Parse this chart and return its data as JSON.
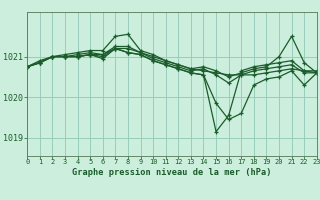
{
  "bg_color": "#cceedd",
  "grid_color": "#99ccbb",
  "line_color": "#1a5c2a",
  "marker_color": "#1a5c2a",
  "title": "Graphe pression niveau de la mer (hPa)",
  "label_color": "#1a5c2a",
  "ylim": [
    1018.55,
    1022.1
  ],
  "yticks": [
    1019,
    1020,
    1021
  ],
  "xlim": [
    0,
    23
  ],
  "xticks": [
    0,
    1,
    2,
    3,
    4,
    5,
    6,
    7,
    8,
    9,
    10,
    11,
    12,
    13,
    14,
    15,
    16,
    17,
    18,
    19,
    20,
    21,
    22,
    23
  ],
  "series": [
    [
      1020.75,
      1020.9,
      1021.0,
      1021.0,
      1021.0,
      1021.05,
      1021.05,
      1021.25,
      1021.25,
      1021.1,
      1021.0,
      1020.9,
      1020.8,
      1020.7,
      1020.65,
      1020.6,
      1020.55,
      1020.55,
      1020.55,
      1020.6,
      1020.65,
      1020.7,
      1020.65,
      1020.6
    ],
    [
      1020.75,
      1020.85,
      1021.0,
      1021.05,
      1021.1,
      1021.15,
      1021.15,
      1021.5,
      1021.55,
      1021.15,
      1021.05,
      1020.9,
      1020.8,
      1020.7,
      1020.75,
      1020.65,
      1020.5,
      1020.6,
      1020.7,
      1020.75,
      1021.0,
      1021.5,
      1020.85,
      1020.6
    ],
    [
      1020.75,
      1020.85,
      1021.0,
      1021.0,
      1021.05,
      1021.1,
      1021.05,
      1021.2,
      1021.2,
      1021.1,
      1020.95,
      1020.85,
      1020.75,
      1020.65,
      1020.7,
      1020.55,
      1020.35,
      1020.55,
      1020.65,
      1020.7,
      1020.75,
      1020.8,
      1020.6,
      1020.6
    ],
    [
      1020.75,
      1020.85,
      1021.0,
      1021.0,
      1021.0,
      1021.05,
      1021.0,
      1021.2,
      1021.1,
      1021.05,
      1020.9,
      1020.8,
      1020.7,
      1020.6,
      1020.55,
      1019.85,
      1019.45,
      1019.6,
      1020.3,
      1020.45,
      1020.5,
      1020.65,
      1020.3,
      1020.6
    ],
    [
      1020.75,
      1020.85,
      1021.0,
      1021.0,
      1021.0,
      1021.05,
      1020.95,
      1021.2,
      1021.1,
      1021.05,
      1020.9,
      1020.8,
      1020.7,
      1020.6,
      1020.55,
      1019.15,
      1019.55,
      1020.65,
      1020.75,
      1020.8,
      1020.85,
      1020.9,
      1020.65,
      1020.65
    ]
  ],
  "figsize": [
    3.2,
    2.0
  ],
  "dpi": 100
}
